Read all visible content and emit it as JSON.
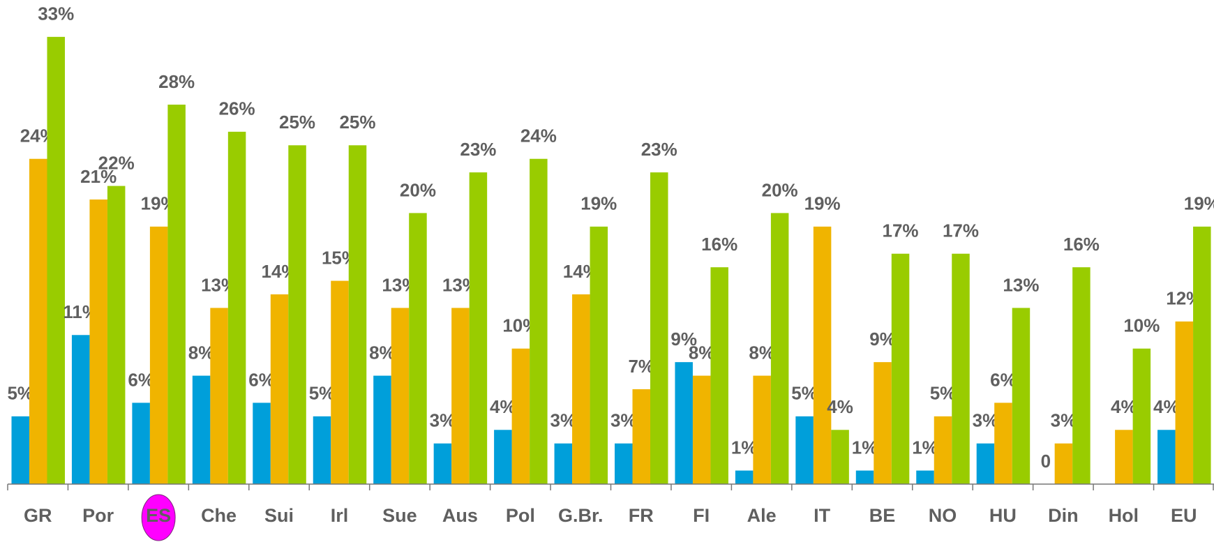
{
  "chart_data": {
    "type": "bar",
    "categories": [
      "GR",
      "Por",
      "ES",
      "Che",
      "Sui",
      "Irl",
      "Sue",
      "Aus",
      "Pol",
      "G.Br.",
      "FR",
      "FI",
      "Ale",
      "IT",
      "BE",
      "NO",
      "HU",
      "Din",
      "Hol",
      "EU"
    ],
    "series": [
      {
        "color": "#009fda",
        "values": [
          5,
          11,
          6,
          8,
          6,
          5,
          8,
          3,
          4,
          3,
          3,
          9,
          1,
          5,
          1,
          1,
          3,
          0,
          null,
          4
        ],
        "value_labels": [
          "5%",
          "11%",
          "6%",
          "8%",
          "6%",
          "5%",
          "8%",
          "3%",
          "4%",
          "3%",
          "3%",
          "9%",
          "1%",
          "5%",
          "1%",
          "1%",
          "3%",
          "0",
          null,
          "4%"
        ]
      },
      {
        "color": "#f0b400",
        "values": [
          24,
          21,
          19,
          13,
          14,
          15,
          13,
          13,
          10,
          14,
          7,
          8,
          8,
          19,
          9,
          5,
          6,
          3,
          4,
          12
        ],
        "value_labels": [
          "24%",
          "21%",
          "19%",
          "13%",
          "14%",
          "15%",
          "13%",
          "13%",
          "10%",
          "14%",
          "7%",
          "8%",
          "8%",
          "19%",
          "9%",
          "5%",
          "6%",
          "3%",
          "4%",
          "12%"
        ]
      },
      {
        "color": "#99cc00",
        "values": [
          33,
          22,
          28,
          26,
          25,
          25,
          20,
          23,
          24,
          19,
          23,
          16,
          20,
          4,
          17,
          17,
          13,
          16,
          10,
          19
        ],
        "value_labels": [
          "33%",
          "22%",
          "28%",
          "26%",
          "25%",
          "25%",
          "20%",
          "23%",
          "24%",
          "19%",
          "23%",
          "16%",
          "20%",
          "4%",
          "17%",
          "17%",
          "13%",
          "16%",
          "10%",
          "19%"
        ]
      }
    ],
    "ylim": [
      0,
      35
    ],
    "highlight_category": 2,
    "highlight_color": "#ff00ff"
  }
}
